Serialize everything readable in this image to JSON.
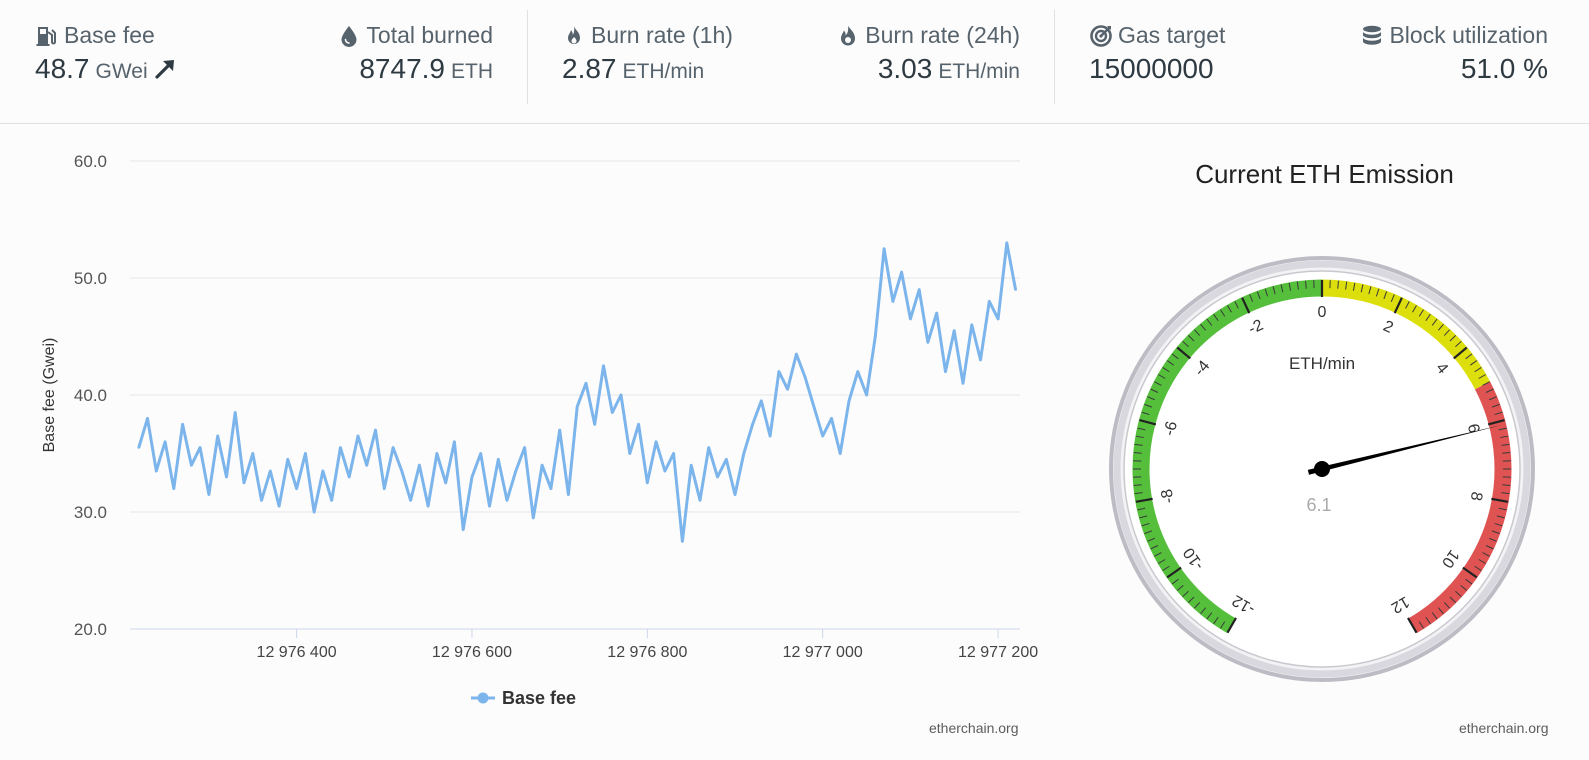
{
  "stats": {
    "base_fee": {
      "label": "Base fee",
      "value": "48.7",
      "unit": "GWei",
      "trend_icon": "arrow-up-right-icon"
    },
    "total_burned": {
      "label": "Total burned",
      "value": "8747.9",
      "unit": "ETH"
    },
    "burn_rate_1h": {
      "label": "Burn rate (1h)",
      "value": "2.87",
      "unit": "ETH/min"
    },
    "burn_rate_24h": {
      "label": "Burn rate (24h)",
      "value": "3.03",
      "unit": "ETH/min"
    },
    "gas_target": {
      "label": "Gas target",
      "value": "15000000"
    },
    "block_utilization": {
      "label": "Block utilization",
      "value": "51.0 %"
    }
  },
  "chart_data": [
    {
      "type": "line",
      "title": "",
      "xlabel": "",
      "ylabel": "Base fee (Gwei)",
      "xlim": [
        12976210,
        12977225
      ],
      "ylim": [
        20,
        60
      ],
      "x_ticks": [
        12976400,
        12976600,
        12976800,
        12977000,
        12977200
      ],
      "x_tick_labels": [
        "12 976 400",
        "12 976 600",
        "12 976 800",
        "12 977 000",
        "12 977 200"
      ],
      "y_ticks": [
        20,
        30,
        40,
        50,
        60
      ],
      "y_tick_labels": [
        "20.0",
        "30.0",
        "40.0",
        "50.0",
        "60.0"
      ],
      "grid": true,
      "legend": "bottom",
      "color": "#7cb5ec",
      "series": [
        {
          "name": "Base fee",
          "x": [
            12976220,
            12976230,
            12976240,
            12976250,
            12976260,
            12976270,
            12976280,
            12976290,
            12976300,
            12976310,
            12976320,
            12976330,
            12976340,
            12976350,
            12976360,
            12976370,
            12976380,
            12976390,
            12976400,
            12976410,
            12976420,
            12976430,
            12976440,
            12976450,
            12976460,
            12976470,
            12976480,
            12976490,
            12976500,
            12976510,
            12976520,
            12976530,
            12976540,
            12976550,
            12976560,
            12976570,
            12976580,
            12976590,
            12976600,
            12976610,
            12976620,
            12976630,
            12976640,
            12976650,
            12976660,
            12976670,
            12976680,
            12976690,
            12976700,
            12976710,
            12976720,
            12976730,
            12976740,
            12976750,
            12976760,
            12976770,
            12976780,
            12976790,
            12976800,
            12976810,
            12976820,
            12976830,
            12976840,
            12976850,
            12976860,
            12976870,
            12976880,
            12976890,
            12976900,
            12976910,
            12976920,
            12976930,
            12976940,
            12976950,
            12976960,
            12976970,
            12976980,
            12976990,
            12977000,
            12977010,
            12977020,
            12977030,
            12977040,
            12977050,
            12977060,
            12977070,
            12977080,
            12977090,
            12977100,
            12977110,
            12977120,
            12977130,
            12977140,
            12977150,
            12977160,
            12977170,
            12977180,
            12977190,
            12977200,
            12977210,
            12977220
          ],
          "values": [
            35.5,
            38.0,
            33.5,
            36.0,
            32.0,
            37.5,
            34.0,
            35.5,
            31.5,
            36.5,
            33.0,
            38.5,
            32.5,
            35.0,
            31.0,
            33.5,
            30.5,
            34.5,
            32.0,
            35.0,
            30.0,
            33.5,
            31.0,
            35.5,
            33.0,
            36.5,
            34.0,
            37.0,
            32.0,
            35.5,
            33.5,
            31.0,
            34.0,
            30.5,
            35.0,
            32.5,
            36.0,
            28.5,
            33.0,
            35.0,
            30.5,
            34.5,
            31.0,
            33.5,
            35.5,
            29.5,
            34.0,
            32.0,
            37.0,
            31.5,
            39.0,
            41.0,
            37.5,
            42.5,
            38.5,
            40.0,
            35.0,
            37.5,
            32.5,
            36.0,
            33.5,
            35.0,
            27.5,
            34.0,
            31.0,
            35.5,
            33.0,
            34.5,
            31.5,
            35.0,
            37.5,
            39.5,
            36.5,
            42.0,
            40.5,
            43.5,
            41.5,
            39.0,
            36.5,
            38.0,
            35.0,
            39.5,
            42.0,
            40.0,
            45.0,
            52.5,
            48.0,
            50.5,
            46.5,
            49.0,
            44.5,
            47.0,
            42.0,
            45.5,
            41.0,
            46.0,
            43.0,
            48.0,
            46.5,
            53.0,
            49.0
          ]
        }
      ]
    },
    {
      "type": "gauge",
      "title": "Current ETH Emission",
      "unit": "ETH/min",
      "min": -12,
      "max": 12,
      "value": 6.1,
      "value_label": "6.1",
      "ticks": [
        -12,
        -10,
        -8,
        -6,
        -4,
        -2,
        0,
        2,
        4,
        6,
        8,
        10,
        12
      ],
      "tick_labels": [
        "-12",
        "-10",
        "-8",
        "-6",
        "-4",
        "-2",
        "0",
        "2",
        "4",
        "6",
        "8",
        "10",
        "12"
      ],
      "bands": [
        {
          "from": -12,
          "to": 0,
          "color": "#55bf3b"
        },
        {
          "from": 0,
          "to": 5,
          "color": "#dddf0d"
        },
        {
          "from": 5,
          "to": 12,
          "color": "#df5353"
        }
      ]
    }
  ],
  "credits": {
    "chart": "etherchain.org",
    "gauge": "etherchain.org"
  }
}
